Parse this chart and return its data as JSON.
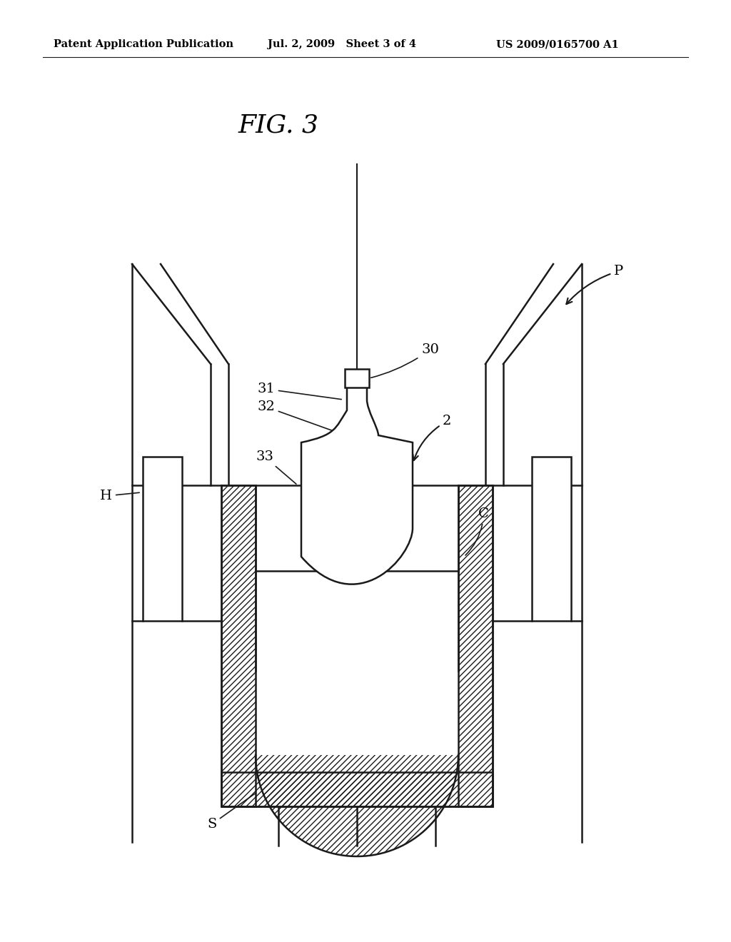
{
  "title": "FIG. 3",
  "header_left": "Patent Application Publication",
  "header_mid": "Jul. 2, 2009   Sheet 3 of 4",
  "header_right": "US 2009/0165700 A1",
  "bg_color": "#ffffff",
  "line_color": "#1a1a1a",
  "fig_width": 10.24,
  "fig_height": 13.2,
  "dpi": 100
}
